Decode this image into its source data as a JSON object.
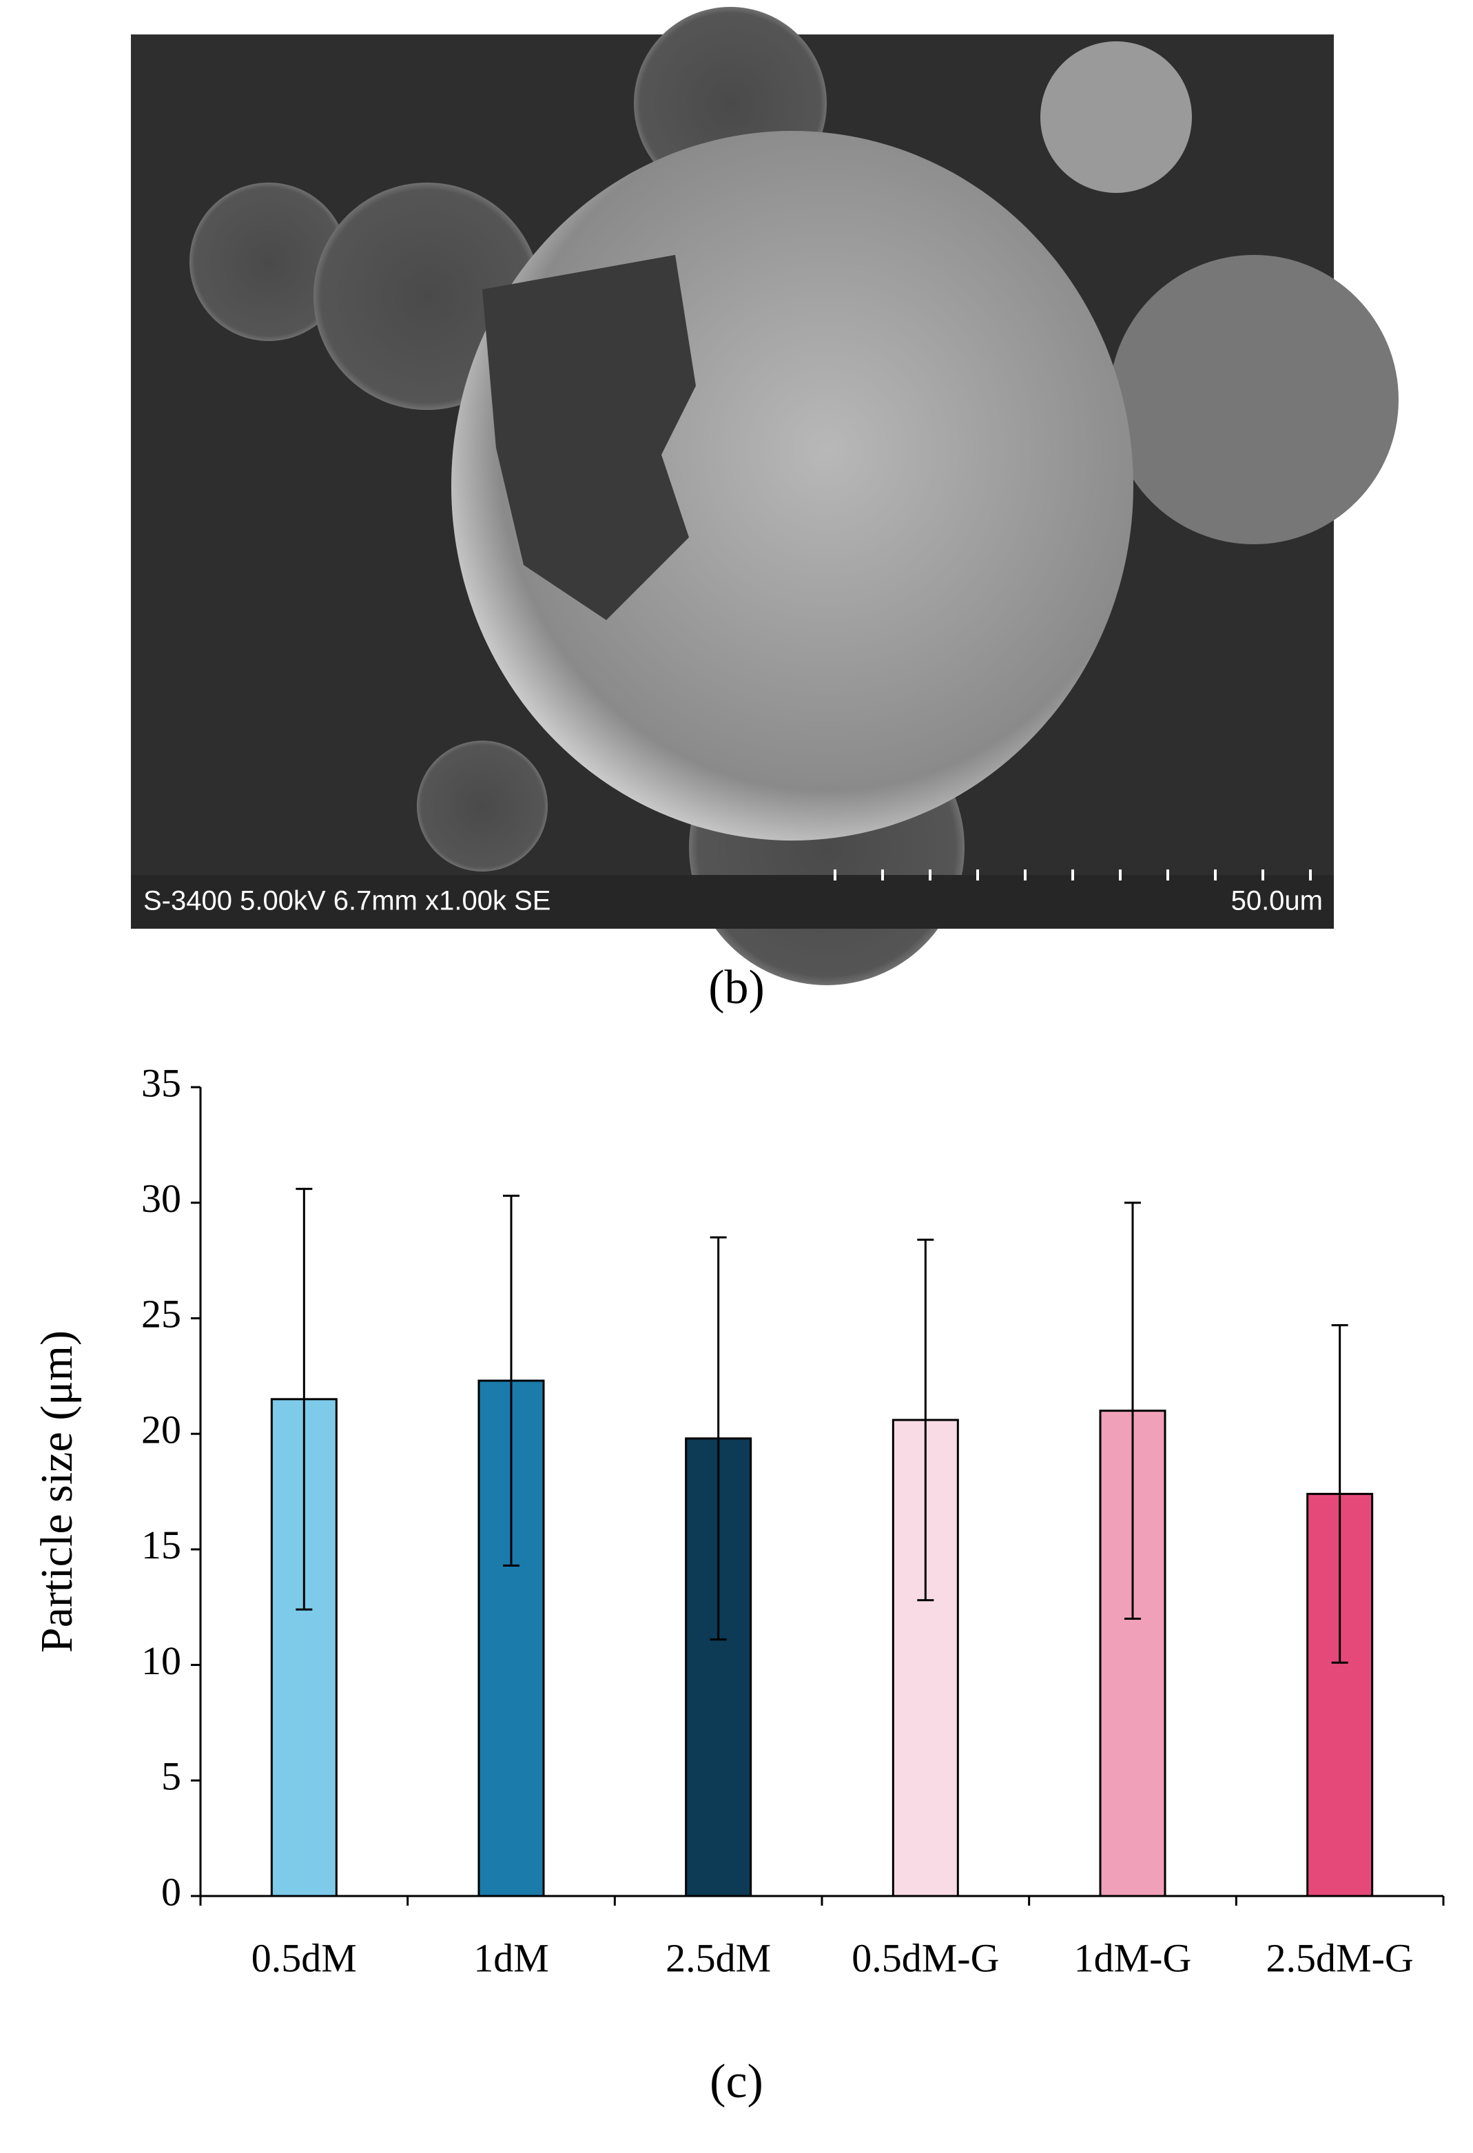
{
  "image": {
    "info": "S-3400 5.00kV 6.7mm x1.00k SE",
    "scale_label": "50.0um"
  },
  "captions": [
    "(b)",
    "(c)"
  ],
  "chart_data": {
    "type": "bar",
    "ylabel": "Particle size (μm)",
    "categories": [
      "0.5dM",
      "1dM",
      "2.5dM",
      "0.5dM-G",
      "1dM-G",
      "2.5dM-G"
    ],
    "values": [
      21.5,
      22.3,
      19.8,
      20.6,
      21.0,
      17.4
    ],
    "errors": [
      9.1,
      8.0,
      8.7,
      7.8,
      9.0,
      7.3
    ],
    "colors": [
      "#7ecae9",
      "#1b7bab",
      "#0d3a54",
      "#f8dbe5",
      "#f0a0b8",
      "#e5497a"
    ],
    "ylim": [
      0,
      35
    ],
    "yticks": [
      0,
      5,
      10,
      15,
      20,
      25,
      30,
      35
    ],
    "grid": false
  }
}
